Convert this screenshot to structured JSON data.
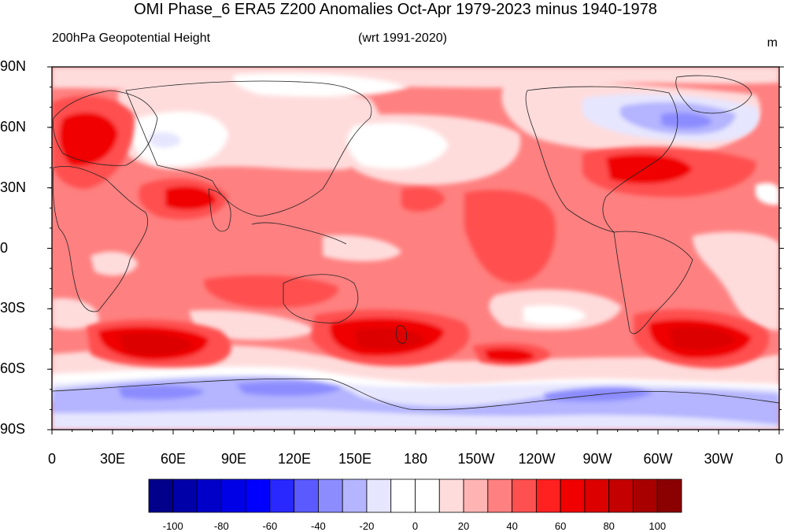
{
  "title": "OMI Phase_6 ERA5 Z200 Anomalies Oct-Apr 1979-2023 minus 1940-1978",
  "left_subtitle": "200hPa Geopotential Height",
  "center_subtitle": "(wrt 1991-2020)",
  "units": "m",
  "lat_labels": [
    "90N",
    "60N",
    "30N",
    "0",
    "30S",
    "60S",
    "90S"
  ],
  "lon_labels": [
    "0",
    "30E",
    "60E",
    "90E",
    "120E",
    "150E",
    "180",
    "150W",
    "120W",
    "90W",
    "60W",
    "30W",
    "0"
  ],
  "colorbar": {
    "colors": [
      "#00008b",
      "#0000a8",
      "#0000c8",
      "#0000e6",
      "#0000ff",
      "#2828ff",
      "#5a5aff",
      "#8c8cff",
      "#b4b4ff",
      "#e6e6ff",
      "#ffffff",
      "#ffffff",
      "#ffdcdc",
      "#ffb4b4",
      "#ff8080",
      "#ff5050",
      "#ff2020",
      "#f00000",
      "#dc0000",
      "#c40000",
      "#a80000",
      "#8b0000"
    ],
    "labels": [
      "-100",
      "-80",
      "-60",
      "-40",
      "-20",
      "0",
      "20",
      "40",
      "60",
      "80",
      "100"
    ]
  },
  "map_fields": {
    "background": "#ff8080",
    "anomaly_patches": [
      {
        "region": "Europe/Scandinavia",
        "level": "strong positive",
        "color": "#f00000"
      },
      {
        "region": "Arabia/Middle East",
        "level": "strong positive",
        "color": "#f00000"
      },
      {
        "region": "Eastern North America",
        "level": "strong positive",
        "color": "#f00000"
      },
      {
        "region": "South Indian Ocean",
        "level": "very strong positive",
        "color": "#dc0000"
      },
      {
        "region": "Tasman Sea/New Zealand",
        "level": "very strong positive",
        "color": "#dc0000"
      },
      {
        "region": "South Atlantic",
        "level": "very strong positive",
        "color": "#dc0000"
      },
      {
        "region": "Siberia",
        "level": "near zero",
        "color": "#ffffff"
      },
      {
        "region": "North Pacific",
        "level": "near zero",
        "color": "#ffffff"
      },
      {
        "region": "Greenland/Baffin",
        "level": "negative",
        "color": "#8c8cff"
      },
      {
        "region": "Antarctica",
        "level": "negative",
        "color": "#b4b4ff"
      }
    ]
  }
}
